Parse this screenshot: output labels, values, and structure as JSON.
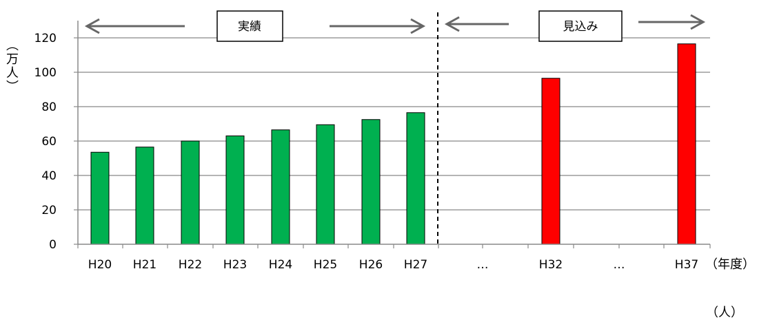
{
  "chart_data": {
    "type": "bar",
    "categories": [
      "H20",
      "H21",
      "H22",
      "H23",
      "H24",
      "H25",
      "H26",
      "H27",
      "…",
      "H32",
      "…",
      "H37"
    ],
    "series": [
      {
        "values": [
          53.5,
          56.5,
          60,
          63,
          66.5,
          69.5,
          72.5,
          76.5,
          null,
          96.5,
          null,
          116.5
        ]
      }
    ],
    "bar_colors": {
      "actual": "#00b050",
      "forecast": "#ff0000"
    },
    "bar_groups": [
      "actual",
      "actual",
      "actual",
      "actual",
      "actual",
      "actual",
      "actual",
      "actual",
      "none",
      "forecast",
      "none",
      "forecast"
    ],
    "ylim": [
      0,
      120
    ],
    "yticks": [
      0,
      20,
      40,
      60,
      80,
      100,
      120
    ],
    "ylabel": "（万人）",
    "xlabel": "（年度）",
    "grid": true,
    "sections": [
      {
        "label": "実績"
      },
      {
        "label": "見込み"
      }
    ],
    "bottom_unit": "（人）"
  }
}
